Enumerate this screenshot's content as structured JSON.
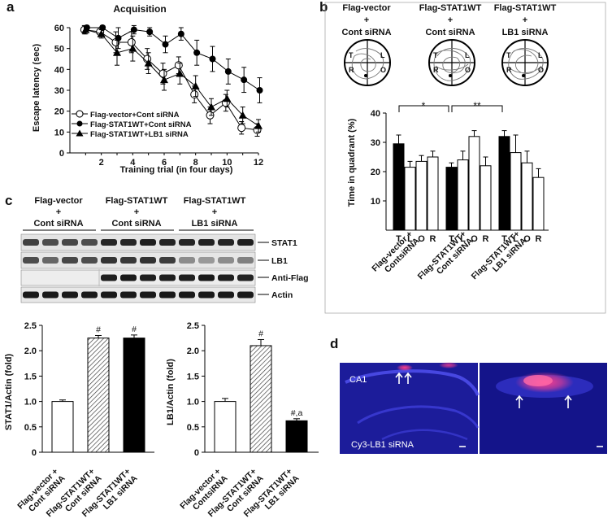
{
  "panel_a": {
    "label": "a",
    "title": "Acquisition",
    "ylabel": "Escape latency (sec)",
    "xlabel": "Training trial (in four days)",
    "legend": [
      "Flag-vector+Cont siRNA",
      "Flag-STAT1WT+Cont siRNA",
      "Flag-STAT1WT+LB1 siRNA"
    ]
  },
  "panel_b": {
    "label": "b",
    "groups": [
      {
        "l1": "Flag-vector",
        "l2": "+",
        "l3": "Cont siRNA"
      },
      {
        "l1": "Flag-STAT1WT",
        "l2": "+",
        "l3": "Cont siRNA"
      },
      {
        "l1": "Flag-STAT1WT",
        "l2": "+",
        "l3": "LB1 siRNA"
      }
    ],
    "maze_letters": {
      "t": "T",
      "l": "L",
      "r": "R",
      "o": "O"
    },
    "ylabel": "Time in quadrant (%)",
    "sig1": "*",
    "sig2": "**",
    "xgroups": [
      {
        "l1": "Flag-vector +",
        "l2": "ContsiRNA"
      },
      {
        "l1": "Flag-STAT1WT+",
        "l2": "Cont siRNA"
      },
      {
        "l1": "Flag-STAT1WT+",
        "l2": "LB1 siRNA"
      }
    ]
  },
  "panel_c": {
    "label": "c",
    "groups": [
      {
        "l1": "Flag-vector",
        "l2": "+",
        "l3": "Cont siRNA"
      },
      {
        "l1": "Flag-STAT1WT",
        "l2": "+",
        "l3": "Cont siRNA"
      },
      {
        "l1": "Flag-STAT1WT",
        "l2": "+",
        "l3": "LB1 siRNA"
      }
    ],
    "blots": [
      "STAT1",
      "LB1",
      "Anti-Flag",
      "Actin"
    ],
    "bar_xlabels": [
      {
        "l1": "Flag-vector +",
        "l2": "Cont siRNA"
      },
      {
        "l1": "Flag-STAT1WT+",
        "l2": "Cont siRNA"
      },
      {
        "l1": "Flag-STAT1WT+",
        "l2": "LB1 siRNA"
      }
    ],
    "bar_xlabels2": [
      {
        "l1": "Flag-vector +",
        "l2": "ContsiRNA"
      },
      {
        "l1": "Flag-STAT1WT+",
        "l2": "Cont siRNA"
      },
      {
        "l1": "Flag-STAT1WT+",
        "l2": "LB1 siRNA"
      }
    ]
  },
  "panel_d": {
    "label": "d",
    "ca1": "CA1",
    "caption": "Cy3-LB1 siRNA"
  },
  "colors": {
    "fluor_bg": "#1c1c9a",
    "fluor_red": "#ff3f8c",
    "fluor_cell": "#7d7dff"
  },
  "chart_data": [
    {
      "type": "line",
      "title": "Acquisition",
      "xlabel": "Training trial (in four days)",
      "ylabel": "Escape latency (sec)",
      "xlim": [
        0,
        12
      ],
      "ylim": [
        0,
        60
      ],
      "xticks": [
        2,
        4,
        6,
        8,
        10,
        12
      ],
      "yticks": [
        0,
        10,
        20,
        30,
        40,
        50,
        60
      ],
      "x": [
        1,
        2,
        3,
        4,
        5,
        6,
        7,
        8,
        9,
        10,
        11,
        12
      ],
      "series": [
        {
          "name": "Flag-vector+Cont siRNA",
          "marker": "open-circle",
          "values": [
            59,
            58,
            53,
            53,
            45,
            38,
            42,
            28,
            18,
            24,
            12,
            11
          ],
          "errors": [
            2,
            2,
            5,
            5,
            5,
            5,
            4,
            4,
            4,
            4,
            3,
            3
          ]
        },
        {
          "name": "Flag-STAT1WT+Cont siRNA",
          "marker": "filled-circle",
          "values": [
            60,
            60,
            55,
            59,
            58,
            52,
            57,
            48,
            45,
            39,
            35,
            30
          ],
          "errors": [
            1,
            1,
            5,
            2,
            2,
            4,
            3,
            6,
            6,
            6,
            6,
            6
          ]
        },
        {
          "name": "Flag-STAT1WT+LB1 siRNA",
          "marker": "filled-triangle",
          "values": [
            59,
            57,
            48,
            50,
            43,
            35,
            38,
            32,
            22,
            26,
            18,
            13
          ],
          "errors": [
            2,
            2,
            6,
            6,
            5,
            5,
            5,
            5,
            4,
            4,
            4,
            3
          ]
        }
      ]
    },
    {
      "type": "bar",
      "ylabel": "Time in quadrant (%)",
      "ylim": [
        0,
        40
      ],
      "yticks": [
        10,
        20,
        30,
        40
      ],
      "categories": [
        "T",
        "L",
        "O",
        "R"
      ],
      "series": [
        {
          "name": "Flag-vector + ContsiRNA",
          "values": [
            29.5,
            21.5,
            23.5,
            25
          ],
          "errors": [
            3,
            2,
            2,
            2
          ]
        },
        {
          "name": "Flag-STAT1WT+ Cont siRNA",
          "values": [
            21.5,
            24,
            32,
            22
          ],
          "errors": [
            1.5,
            3,
            2,
            3
          ]
        },
        {
          "name": "Flag-STAT1WT+ LB1 siRNA",
          "values": [
            32,
            26.5,
            23,
            18
          ],
          "errors": [
            2,
            6,
            4,
            3
          ]
        }
      ]
    },
    {
      "type": "bar",
      "ylabel": "STAT1/Actin (fold)",
      "ylim": [
        0,
        2.5
      ],
      "yticks": [
        0,
        0.5,
        1.0,
        1.5,
        2.0,
        2.5
      ],
      "yticklabels": [
        "0",
        "0.5",
        "1.0",
        "1.5",
        "2.0",
        "2.5"
      ],
      "categories": [
        "Flag-vector + Cont siRNA",
        "Flag-STAT1WT+ Cont siRNA",
        "Flag-STAT1WT+ LB1 siRNA"
      ],
      "values": [
        1.0,
        2.25,
        2.25
      ],
      "errors": [
        0.03,
        0.05,
        0.06
      ],
      "annotations": [
        "",
        "#",
        "#"
      ]
    },
    {
      "type": "bar",
      "ylabel": "LB1/Actin (fold)",
      "ylim": [
        0,
        2.5
      ],
      "yticks": [
        0,
        0.5,
        1.0,
        1.5,
        2.0,
        2.5
      ],
      "yticklabels": [
        "0",
        "0.5",
        "1.0",
        "1.5",
        "2.0",
        "2.5"
      ],
      "categories": [
        "Flag-vector + ContsiRNA",
        "Flag-STAT1WT+ Cont siRNA",
        "Flag-STAT1WT+ LB1 siRNA"
      ],
      "values": [
        1.0,
        2.1,
        0.62
      ],
      "errors": [
        0.06,
        0.12,
        0.04
      ],
      "annotations": [
        "",
        "#",
        "#,a"
      ]
    }
  ]
}
